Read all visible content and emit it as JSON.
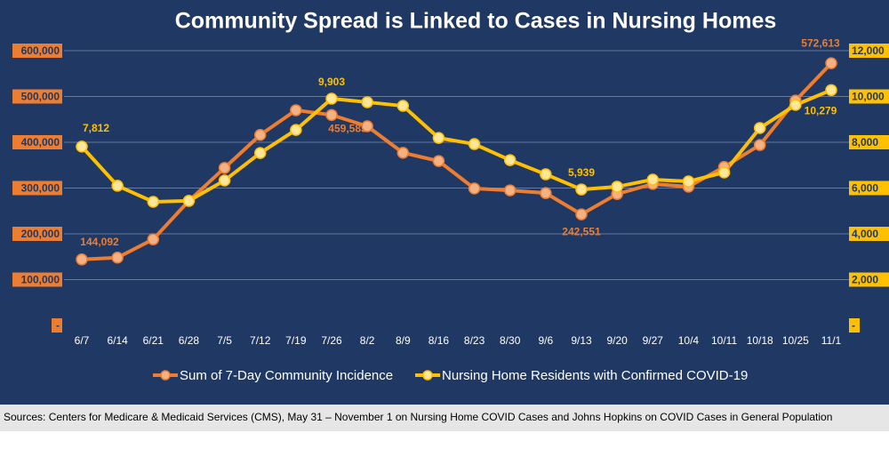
{
  "chart_data": {
    "type": "line",
    "title": "Community Spread is Linked to Cases in Nursing Homes",
    "categories": [
      "6/7",
      "6/14",
      "6/21",
      "6/28",
      "7/5",
      "7/12",
      "7/19",
      "7/26",
      "8/2",
      "8/9",
      "8/16",
      "8/23",
      "8/30",
      "9/6",
      "9/13",
      "9/20",
      "9/27",
      "10/4",
      "10/11",
      "10/18",
      "10/25",
      "11/1"
    ],
    "series": [
      {
        "name": "Sum of 7-Day Community Incidence",
        "color": "#ed7d31",
        "values": [
          144092,
          148000,
          188000,
          272000,
          344000,
          416000,
          470000,
          459583,
          435000,
          377000,
          359000,
          299000,
          295000,
          289000,
          242551,
          287000,
          309000,
          303000,
          346000,
          394000,
          491000,
          572613
        ],
        "value_labels": [
          "144,092",
          null,
          null,
          null,
          null,
          null,
          null,
          "459,583",
          null,
          null,
          null,
          null,
          null,
          null,
          "242,551",
          null,
          null,
          null,
          null,
          null,
          null,
          "572,613"
        ]
      },
      {
        "name": "Nursing Home Residents with Confirmed COVID-19",
        "color": "#ffc000",
        "axis": "y2",
        "values": [
          7812,
          6100,
          5400,
          5440,
          6330,
          7530,
          8540,
          9903,
          9750,
          9590,
          8190,
          7920,
          7220,
          6600,
          5939,
          6060,
          6370,
          6290,
          6680,
          8620,
          9630,
          10279
        ],
        "value_labels": [
          "7,812",
          null,
          null,
          null,
          null,
          null,
          null,
          "9,903",
          null,
          null,
          null,
          null,
          null,
          null,
          "5,939",
          null,
          null,
          null,
          null,
          null,
          null,
          "10,279"
        ]
      }
    ],
    "ylim": [
      0,
      600000
    ],
    "yticks": [
      {
        "value": 0,
        "label": "-"
      },
      {
        "value": 100000,
        "label": "100,000"
      },
      {
        "value": 200000,
        "label": "200,000"
      },
      {
        "value": 300000,
        "label": "300,000"
      },
      {
        "value": 400000,
        "label": "400,000"
      },
      {
        "value": 500000,
        "label": "500,000"
      },
      {
        "value": 600000,
        "label": "600,000"
      }
    ],
    "y2lim": [
      0,
      12000
    ],
    "y2ticks": [
      {
        "value": 0,
        "label": "-"
      },
      {
        "value": 2000,
        "label": "2,000"
      },
      {
        "value": 4000,
        "label": "4,000"
      },
      {
        "value": 6000,
        "label": "6,000"
      },
      {
        "value": 8000,
        "label": "8,000"
      },
      {
        "value": 10000,
        "label": "10,000"
      },
      {
        "value": 12000,
        "label": "12,000"
      }
    ],
    "grid": true,
    "legend": "bottom",
    "source": "Sources: Centers for Medicare & Medicaid Services (CMS), May 31 – November 1 on Nursing Home COVID Cases and Johns Hopkins on COVID Cases in General Population"
  }
}
